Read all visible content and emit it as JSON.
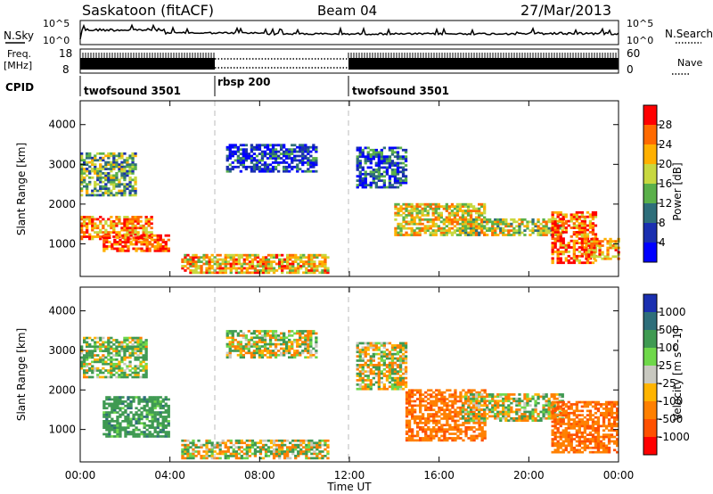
{
  "header": {
    "station": "Saskatoon (fitACF)",
    "beam": "Beam 04",
    "date": "27/Mar/2013"
  },
  "top_strip": {
    "nsky_label": "N.Sky",
    "nsky_tick_top": "10^5",
    "nsky_tick_bottom": "10^0",
    "nsearch_label": "N.Search",
    "nsearch_tick_top": "10^5",
    "nsearch_tick_bottom": "10^0",
    "freq_label_1": "Freq.",
    "freq_label_2": "[MHz]",
    "freq_tick_top": "18",
    "freq_tick_bottom": "8",
    "nave_label": "Nave",
    "nave_tick_top": "60",
    "nave_tick_bottom": "0",
    "cpid_label": "CPID",
    "cpid_segments": [
      {
        "label": "twofsound 3501",
        "start_hour": 0,
        "end_hour": 6
      },
      {
        "label": "rbsp 200",
        "start_hour": 6,
        "end_hour": 12
      },
      {
        "label": "twofsound 3501",
        "start_hour": 12,
        "end_hour": 24
      }
    ]
  },
  "chart_data": [
    {
      "type": "heatmap",
      "panel": "power",
      "ylabel": "Slant Range [km]",
      "yticks": [
        1000,
        2000,
        3000,
        4000
      ],
      "ylim": [
        180,
        4600
      ],
      "xlim": [
        0,
        24
      ],
      "colorbar_label": "Power [dB]",
      "colorbar_ticks": [
        "28",
        "24",
        "20",
        "16",
        "12",
        "8",
        "4"
      ],
      "colorbar_colors": [
        "#ff0000",
        "#ff6a00",
        "#ffb000",
        "#c8d840",
        "#5ab04a",
        "#2e6e7a",
        "#1a2fb0",
        "#0000ff"
      ],
      "echo_bands": [
        {
          "t0": 0.0,
          "t1": 3.2,
          "r0": 1100,
          "r1": 1700,
          "value": 24
        },
        {
          "t0": 1.0,
          "t1": 4.0,
          "r0": 800,
          "r1": 1200,
          "value": 28
        },
        {
          "t0": 0.0,
          "t1": 2.5,
          "r0": 2200,
          "r1": 3300,
          "value": 14
        },
        {
          "t0": 4.5,
          "t1": 11.0,
          "r0": 250,
          "r1": 700,
          "value": 22
        },
        {
          "t0": 6.5,
          "t1": 10.5,
          "r0": 2800,
          "r1": 3500,
          "value": 6
        },
        {
          "t0": 12.3,
          "t1": 14.5,
          "r0": 2400,
          "r1": 3400,
          "value": 8
        },
        {
          "t0": 14.0,
          "t1": 18.0,
          "r0": 1200,
          "r1": 2000,
          "value": 20
        },
        {
          "t0": 17.0,
          "t1": 21.5,
          "r0": 1200,
          "r1": 1600,
          "value": 18
        },
        {
          "t0": 21.0,
          "t1": 23.0,
          "r0": 500,
          "r1": 1800,
          "value": 26
        },
        {
          "t0": 22.5,
          "t1": 24.0,
          "r0": 600,
          "r1": 1100,
          "value": 24
        }
      ]
    },
    {
      "type": "heatmap",
      "panel": "velocity",
      "ylabel": "Slant Range [km]",
      "yticks": [
        1000,
        2000,
        3000,
        4000
      ],
      "ylim": [
        180,
        4600
      ],
      "xlim": [
        0,
        24
      ],
      "xticks": [
        "00:00",
        "04:00",
        "08:00",
        "12:00",
        "16:00",
        "20:00",
        "00:00"
      ],
      "xlabel": "Time UT",
      "colorbar_label": "Velocity [m s^-1]",
      "colorbar_ticks": [
        "1000",
        "500",
        "100",
        "25",
        "-25",
        "-100",
        "-500",
        "-1000"
      ],
      "colorbar_colors": [
        "#1a2fb0",
        "#2e6e7a",
        "#3f9a52",
        "#6fd84a",
        "#c8c8c0",
        "#ffb400",
        "#ff8000",
        "#ff5000",
        "#ff0000"
      ],
      "echo_bands": [
        {
          "t0": 0.0,
          "t1": 3.0,
          "r0": 2300,
          "r1": 3300,
          "value": 120
        },
        {
          "t0": 1.0,
          "t1": 4.0,
          "r0": 800,
          "r1": 1800,
          "value": 300
        },
        {
          "t0": 4.5,
          "t1": 11.0,
          "r0": 250,
          "r1": 700,
          "value": 0
        },
        {
          "t0": 6.5,
          "t1": 10.5,
          "r0": 2800,
          "r1": 3500,
          "value": 0
        },
        {
          "t0": 12.3,
          "t1": 14.5,
          "r0": 2000,
          "r1": 3200,
          "value": 0
        },
        {
          "t0": 14.5,
          "t1": 18.0,
          "r0": 700,
          "r1": 2000,
          "value": -400
        },
        {
          "t0": 17.0,
          "t1": 21.5,
          "r0": 1200,
          "r1": 1900,
          "value": 0
        },
        {
          "t0": 21.0,
          "t1": 24.0,
          "r0": 400,
          "r1": 1700,
          "value": -450
        }
      ]
    }
  ]
}
